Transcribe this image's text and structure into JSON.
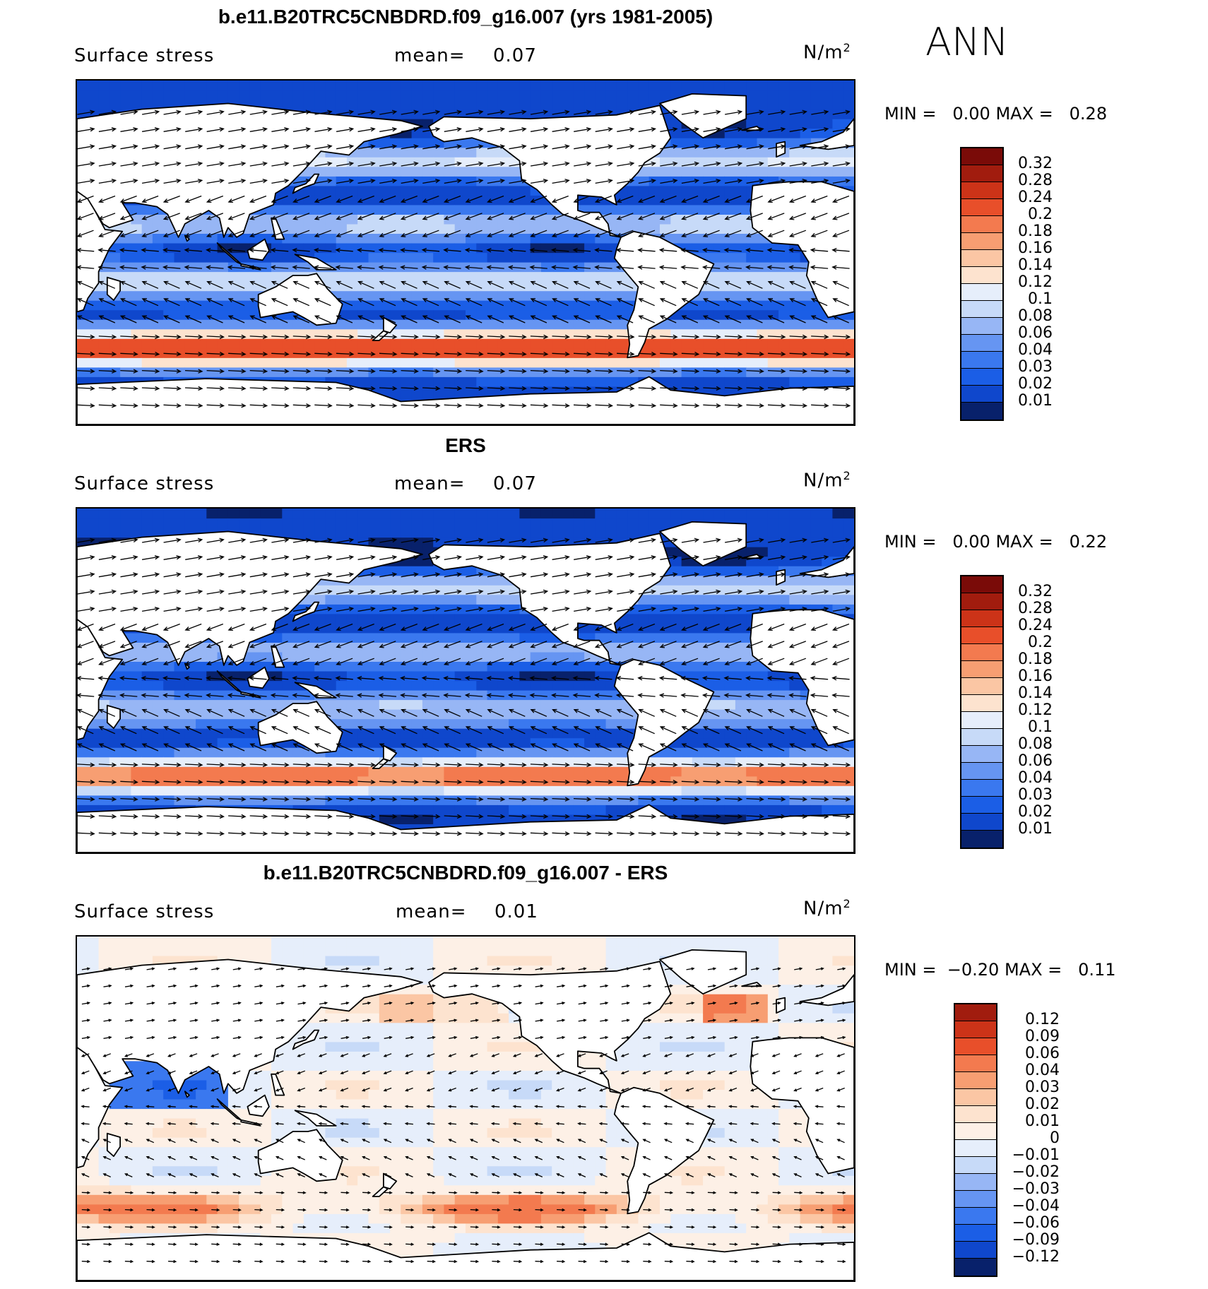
{
  "season": "ANN",
  "palette_pos": [
    "#08216b",
    "#0b34a6",
    "#0f47cc",
    "#1b5ee6",
    "#3a78ef",
    "#6695f2",
    "#97b6f5",
    "#c7daf8",
    "#e6eefb",
    "#fde3cf",
    "#fbc6a4",
    "#f79e72",
    "#f37a4f",
    "#e84f2a",
    "#cc3318",
    "#a11c0e",
    "#7a0b08"
  ],
  "panels": [
    {
      "title": "b.e11.B20TRC5CNBDRD.f09_g16.007 (yrs 1981-2005)",
      "variable": "Surface stress",
      "mean_label": "mean=",
      "mean_value": "0.07",
      "units": "N/m",
      "units_sup": "2",
      "min_label": "MIN =",
      "min_value": "0.00",
      "max_label": "MAX =",
      "max_value": "0.28",
      "colorbar_levels": [
        "0.32",
        "0.28",
        "0.24",
        "0.2",
        "0.18",
        "0.16",
        "0.14",
        "0.12",
        "0.1",
        "0.08",
        "0.06",
        "0.04",
        "0.03",
        "0.02",
        "0.01"
      ],
      "colorbar_colors": [
        "#7a0b08",
        "#a11c0e",
        "#cc3318",
        "#e84f2a",
        "#f37a4f",
        "#f79e72",
        "#fbc6a4",
        "#fde3cf",
        "#e6eefb",
        "#c7daf8",
        "#97b6f5",
        "#6695f2",
        "#3a78ef",
        "#1b5ee6",
        "#0f47cc",
        "#08216b"
      ],
      "field": "model"
    },
    {
      "title": "ERS",
      "variable": "Surface stress",
      "mean_label": "mean=",
      "mean_value": "0.07",
      "units": "N/m",
      "units_sup": "2",
      "min_label": "MIN =",
      "min_value": "0.00",
      "max_label": "MAX =",
      "max_value": "0.22",
      "colorbar_levels": [
        "0.32",
        "0.28",
        "0.24",
        "0.2",
        "0.18",
        "0.16",
        "0.14",
        "0.12",
        "0.1",
        "0.08",
        "0.06",
        "0.04",
        "0.03",
        "0.02",
        "0.01"
      ],
      "colorbar_colors": [
        "#7a0b08",
        "#a11c0e",
        "#cc3318",
        "#e84f2a",
        "#f37a4f",
        "#f79e72",
        "#fbc6a4",
        "#fde3cf",
        "#e6eefb",
        "#c7daf8",
        "#97b6f5",
        "#6695f2",
        "#3a78ef",
        "#1b5ee6",
        "#0f47cc",
        "#08216b"
      ],
      "field": "obs"
    },
    {
      "title": "b.e11.B20TRC5CNBDRD.f09_g16.007 - ERS",
      "variable": "Surface stress",
      "mean_label": "mean=",
      "mean_value": "0.01",
      "units": "N/m",
      "units_sup": "2",
      "min_label": "MIN =",
      "min_value": "−0.20",
      "max_label": "MAX =",
      "max_value": "0.11",
      "colorbar_levels": [
        "0.12",
        "0.09",
        "0.06",
        "0.04",
        "0.03",
        "0.02",
        "0.01",
        "0",
        "−0.01",
        "−0.02",
        "−0.03",
        "−0.04",
        "−0.06",
        "−0.09",
        "−0.12"
      ],
      "colorbar_colors": [
        "#a11c0e",
        "#cc3318",
        "#e84f2a",
        "#f37a4f",
        "#f79e72",
        "#fbc6a4",
        "#fde3cf",
        "#fdf0e6",
        "#e6eefb",
        "#c7daf8",
        "#97b6f5",
        "#6695f2",
        "#3a78ef",
        "#1b5ee6",
        "#0f47cc",
        "#08216b"
      ],
      "field": "diff"
    }
  ]
}
